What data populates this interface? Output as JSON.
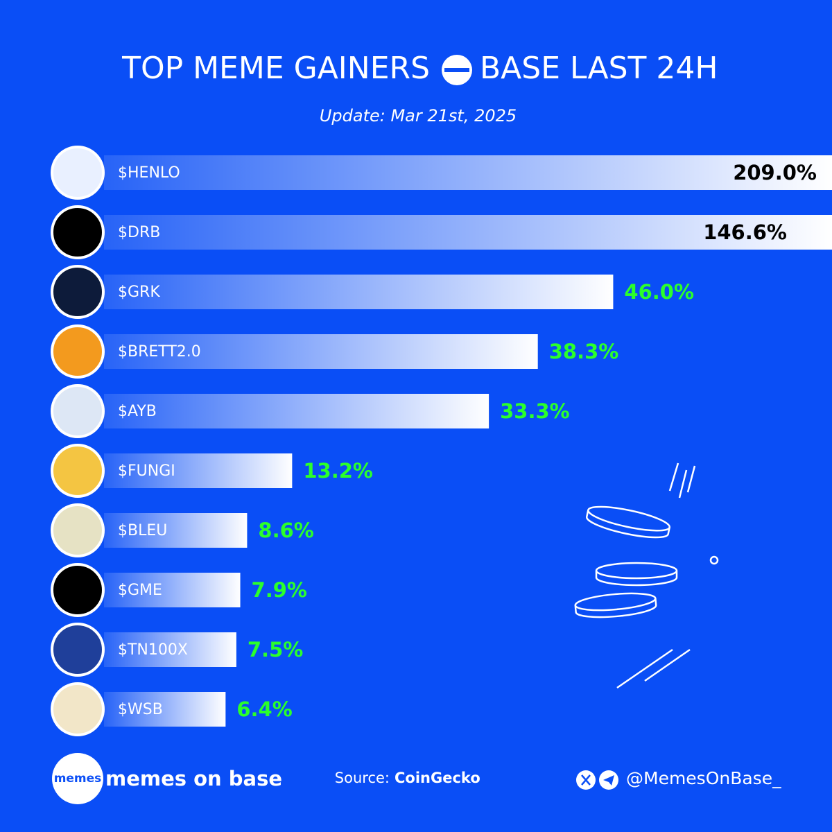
{
  "chart_data": {
    "type": "bar",
    "orientation": "horizontal",
    "title": [
      "TOP MEME GAINERS",
      "BASE LAST 24H"
    ],
    "subtitle": "Update: Mar 21st, 2025",
    "categories": [
      "$HENLO",
      "$DRB",
      "$GRK",
      "$BRETT2.0",
      "$AYB",
      "$FUNGI",
      "$BLEU",
      "$GME",
      "$TN100X",
      "$WSB"
    ],
    "values": [
      209.0,
      146.6,
      46.0,
      38.3,
      33.3,
      13.2,
      8.6,
      7.9,
      7.5,
      6.4
    ],
    "value_labels": [
      "209.0%",
      "146.6%",
      "46.0%",
      "38.3%",
      "33.3%",
      "13.2%",
      "8.6%",
      "7.9%",
      "7.5%",
      "6.4%"
    ],
    "xlim": [
      0,
      68
    ],
    "color": "#ffffff",
    "label_color": "#2bff2b"
  },
  "footer": {
    "logo": "memes",
    "brand": "memes on base",
    "source_label": "Source:",
    "source": "CoinGecko",
    "handle": "@MemesOnBase_"
  }
}
